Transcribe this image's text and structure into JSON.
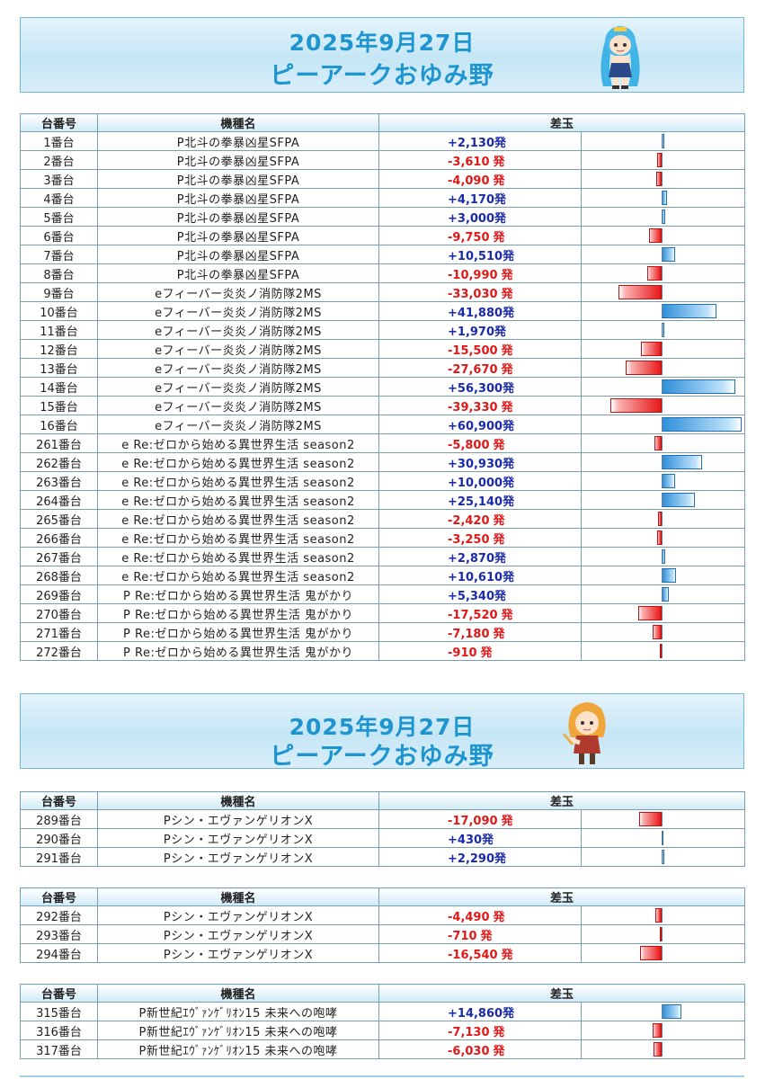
{
  "colors": {
    "banner_text": "#1e95cf",
    "positive": "#1a2aa8",
    "negative": "#e01818",
    "bar_positive": "#2f8fd9",
    "bar_negative": "#e81818"
  },
  "banners": [
    {
      "date": "2025年9月27日",
      "store": "ピーアークおゆみ野",
      "mascot": "blue-hair-girl-character"
    },
    {
      "date": "2025年9月27日",
      "store": "ピーアークおゆみ野",
      "mascot": "orange-hair-character"
    }
  ],
  "headers": {
    "no": "台番号",
    "model": "機種名",
    "diff": "差玉"
  },
  "unit": "発",
  "tables": [
    {
      "rows": [
        {
          "no": "1番台",
          "model": "P北斗の拳暴凶星SFPA",
          "diff": "+2,130",
          "value": 2130
        },
        {
          "no": "2番台",
          "model": "P北斗の拳暴凶星SFPA",
          "diff": "-3,610",
          "value": -3610
        },
        {
          "no": "3番台",
          "model": "P北斗の拳暴凶星SFPA",
          "diff": "-4,090",
          "value": -4090
        },
        {
          "no": "4番台",
          "model": "P北斗の拳暴凶星SFPA",
          "diff": "+4,170",
          "value": 4170
        },
        {
          "no": "5番台",
          "model": "P北斗の拳暴凶星SFPA",
          "diff": "+3,000",
          "value": 3000
        },
        {
          "no": "6番台",
          "model": "P北斗の拳暴凶星SFPA",
          "diff": "-9,750",
          "value": -9750
        },
        {
          "no": "7番台",
          "model": "P北斗の拳暴凶星SFPA",
          "diff": "+10,510",
          "value": 10510
        },
        {
          "no": "8番台",
          "model": "P北斗の拳暴凶星SFPA",
          "diff": "-10,990",
          "value": -10990
        },
        {
          "no": "9番台",
          "model": "eフィーバー炎炎ノ消防隊2MS",
          "diff": "-33,030",
          "value": -33030
        },
        {
          "no": "10番台",
          "model": "eフィーバー炎炎ノ消防隊2MS",
          "diff": "+41,880",
          "value": 41880
        },
        {
          "no": "11番台",
          "model": "eフィーバー炎炎ノ消防隊2MS",
          "diff": "+1,970",
          "value": 1970
        },
        {
          "no": "12番台",
          "model": "eフィーバー炎炎ノ消防隊2MS",
          "diff": "-15,500",
          "value": -15500
        },
        {
          "no": "13番台",
          "model": "eフィーバー炎炎ノ消防隊2MS",
          "diff": "-27,670",
          "value": -27670
        },
        {
          "no": "14番台",
          "model": "eフィーバー炎炎ノ消防隊2MS",
          "diff": "+56,300",
          "value": 56300
        },
        {
          "no": "15番台",
          "model": "eフィーバー炎炎ノ消防隊2MS",
          "diff": "-39,330",
          "value": -39330
        },
        {
          "no": "16番台",
          "model": "eフィーバー炎炎ノ消防隊2MS",
          "diff": "+60,900",
          "value": 60900
        },
        {
          "no": "261番台",
          "model": "e Re:ゼロから始める異世界生活 season2",
          "diff": "-5,800",
          "value": -5800
        },
        {
          "no": "262番台",
          "model": "e Re:ゼロから始める異世界生活 season2",
          "diff": "+30,930",
          "value": 30930
        },
        {
          "no": "263番台",
          "model": "e Re:ゼロから始める異世界生活 season2",
          "diff": "+10,000",
          "value": 10000
        },
        {
          "no": "264番台",
          "model": "e Re:ゼロから始める異世界生活 season2",
          "diff": "+25,140",
          "value": 25140
        },
        {
          "no": "265番台",
          "model": "e Re:ゼロから始める異世界生活 season2",
          "diff": "-2,420",
          "value": -2420
        },
        {
          "no": "266番台",
          "model": "e Re:ゼロから始める異世界生活 season2",
          "diff": "-3,250",
          "value": -3250
        },
        {
          "no": "267番台",
          "model": "e Re:ゼロから始める異世界生活 season2",
          "diff": "+2,870",
          "value": 2870
        },
        {
          "no": "268番台",
          "model": "e Re:ゼロから始める異世界生活 season2",
          "diff": "+10,610",
          "value": 10610
        },
        {
          "no": "269番台",
          "model": "P Re:ゼロから始める異世界生活 鬼がかり",
          "diff": "+5,340",
          "value": 5340
        },
        {
          "no": "270番台",
          "model": "P Re:ゼロから始める異世界生活 鬼がかり",
          "diff": "-17,520",
          "value": -17520
        },
        {
          "no": "271番台",
          "model": "P Re:ゼロから始める異世界生活 鬼がかり",
          "diff": "-7,180",
          "value": -7180
        },
        {
          "no": "272番台",
          "model": "P Re:ゼロから始める異世界生活 鬼がかり",
          "diff": "-910",
          "value": -910
        }
      ]
    },
    {
      "rows": [
        {
          "no": "289番台",
          "model": "Pシン・エヴァンゲリオンX",
          "diff": "-17,090",
          "value": -17090
        },
        {
          "no": "290番台",
          "model": "Pシン・エヴァンゲリオンX",
          "diff": "+430",
          "value": 430
        },
        {
          "no": "291番台",
          "model": "Pシン・エヴァンゲリオンX",
          "diff": "+2,290",
          "value": 2290
        }
      ]
    },
    {
      "rows": [
        {
          "no": "292番台",
          "model": "Pシン・エヴァンゲリオンX",
          "diff": "-4,490",
          "value": -4490
        },
        {
          "no": "293番台",
          "model": "Pシン・エヴァンゲリオンX",
          "diff": "-710",
          "value": -710
        },
        {
          "no": "294番台",
          "model": "Pシン・エヴァンゲリオンX",
          "diff": "-16,540",
          "value": -16540
        }
      ]
    },
    {
      "rows": [
        {
          "no": "315番台",
          "model": "P新世紀ｴｳﾞｧﾝｹﾞﾘｵﾝ15 未来への咆哮",
          "diff": "+14,860",
          "value": 14860
        },
        {
          "no": "316番台",
          "model": "P新世紀ｴｳﾞｧﾝｹﾞﾘｵﾝ15 未来への咆哮",
          "diff": "-7,130",
          "value": -7130
        },
        {
          "no": "317番台",
          "model": "P新世紀ｴｳﾞｧﾝｹﾞﾘｵﾝ15 未来への咆哮",
          "diff": "-6,030",
          "value": -6030
        }
      ]
    }
  ]
}
